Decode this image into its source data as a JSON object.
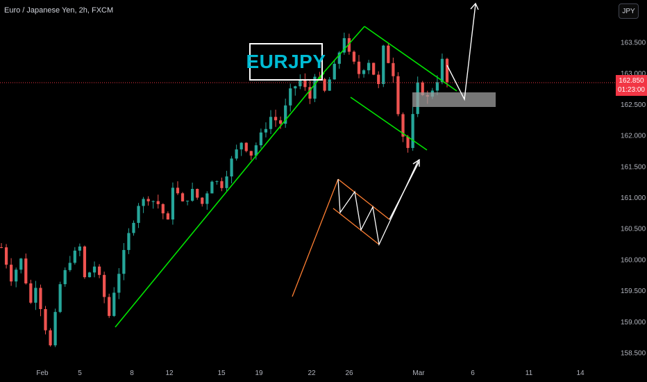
{
  "header": {
    "title": "Euro / Japanese Yen, 2h, FXCM",
    "currency_button": "JPY"
  },
  "annotation": {
    "symbol_label": "EURJPY"
  },
  "price_badge": {
    "price": "162.850",
    "countdown": "01:23:00"
  },
  "colors": {
    "background": "#000000",
    "up_candle": "#26a69a",
    "down_candle": "#ef5350",
    "channel_lines": "#00e600",
    "pattern_pole": "#ff7f32",
    "arrows": "#ffffff",
    "zone": "#9e9e9e",
    "price_line": "#f23645",
    "symbol_text": "#00bcd4"
  },
  "chart_data": {
    "type": "candlestick",
    "symbol": "EURJPY",
    "interval": "2h",
    "source": "FXCM",
    "x_ticks": [
      "Feb",
      "5",
      "8",
      "12",
      "15",
      "19",
      "22",
      "26",
      "Mar",
      "6",
      "11",
      "14"
    ],
    "y_ticks": [
      "163.500",
      "163.000",
      "162.500",
      "162.000",
      "161.500",
      "161.000",
      "160.500",
      "160.000",
      "159.500",
      "159.000",
      "158.500"
    ],
    "ylim": [
      158.42,
      164.05
    ],
    "last_price": 162.85,
    "price_path": [
      [
        0,
        160.2
      ],
      [
        2,
        159.7
      ],
      [
        4,
        160.0
      ],
      [
        6,
        159.3
      ],
      [
        7,
        159.6
      ],
      [
        9,
        158.9
      ],
      [
        10,
        158.6
      ],
      [
        12,
        159.6
      ],
      [
        14,
        160.0
      ],
      [
        16,
        160.2
      ],
      [
        17,
        159.7
      ],
      [
        19,
        159.9
      ],
      [
        20,
        159.7
      ],
      [
        22,
        159.1
      ],
      [
        23,
        159.5
      ],
      [
        26,
        160.4
      ],
      [
        28,
        160.9
      ],
      [
        30,
        161.0
      ],
      [
        32,
        160.9
      ],
      [
        34,
        160.6
      ],
      [
        35,
        161.2
      ],
      [
        37,
        160.9
      ],
      [
        39,
        161.1
      ],
      [
        41,
        160.9
      ],
      [
        43,
        161.3
      ],
      [
        45,
        161.2
      ],
      [
        47,
        161.6
      ],
      [
        49,
        161.9
      ],
      [
        51,
        161.7
      ],
      [
        53,
        162.0
      ],
      [
        55,
        162.3
      ],
      [
        57,
        162.2
      ],
      [
        59,
        162.7
      ],
      [
        61,
        162.9
      ],
      [
        63,
        162.6
      ],
      [
        64,
        163.0
      ],
      [
        66,
        162.7
      ],
      [
        68,
        163.1
      ],
      [
        70,
        163.6
      ],
      [
        71,
        163.3
      ],
      [
        73,
        163.0
      ],
      [
        75,
        163.2
      ],
      [
        77,
        162.8
      ],
      [
        78,
        163.4
      ],
      [
        80,
        163.0
      ],
      [
        81,
        162.4
      ],
      [
        82,
        162.0
      ],
      [
        83,
        161.8
      ],
      [
        84,
        162.3
      ],
      [
        85,
        162.8
      ],
      [
        87,
        162.6
      ],
      [
        89,
        162.9
      ],
      [
        90,
        163.2
      ],
      [
        91,
        162.85
      ]
    ],
    "candle_count": 92,
    "drawings": [
      {
        "type": "trendline",
        "name": "uptrend-channel-lower"
      },
      {
        "type": "trendline",
        "name": "flag-upper"
      },
      {
        "type": "trendline",
        "name": "flag-lower"
      },
      {
        "type": "zone",
        "name": "breakout-retest-zone"
      },
      {
        "type": "pattern",
        "name": "bull-flag-illustration"
      },
      {
        "type": "arrow",
        "name": "projection-arrow"
      }
    ]
  }
}
